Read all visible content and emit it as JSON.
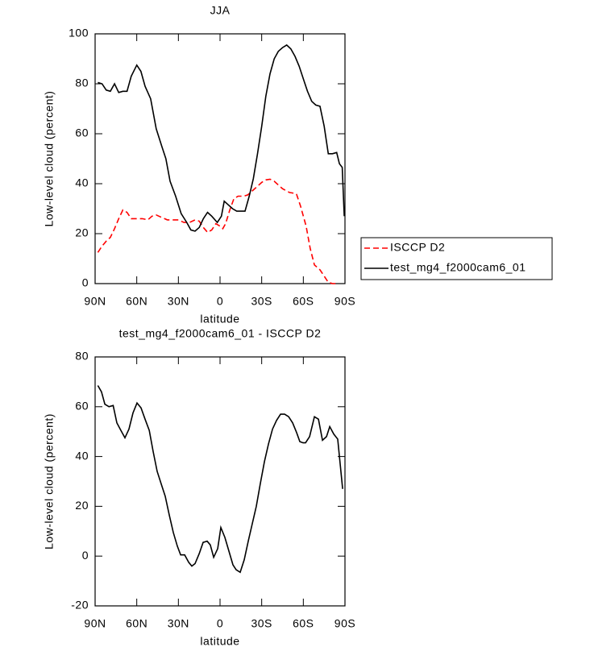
{
  "chart_data": [
    {
      "type": "line",
      "title": "JJA",
      "xlabel": "latitude",
      "ylabel": "Low-level cloud (percent)",
      "xlim": [
        90,
        -90
      ],
      "xticks": [
        {
          "value": 90,
          "label": "90N"
        },
        {
          "value": 60,
          "label": "60N"
        },
        {
          "value": 30,
          "label": "30N"
        },
        0,
        {
          "value": -30,
          "label": "30S"
        },
        {
          "value": -60,
          "label": "60S"
        },
        {
          "value": -90,
          "label": "90S"
        }
      ],
      "ylim": [
        0,
        100
      ],
      "yticks": [
        0,
        20,
        40,
        60,
        80,
        100
      ],
      "legend": "right",
      "series": [
        {
          "name": "ISCCP D2",
          "color": "#ff0000",
          "linestyle": "dashed",
          "x": [
            88,
            85,
            82,
            79,
            76,
            73,
            70,
            67,
            64,
            60,
            56,
            52,
            49,
            46,
            42,
            38,
            34,
            30,
            26,
            22,
            18,
            15,
            12,
            9,
            6,
            3,
            0,
            -2,
            -4,
            -7,
            -10,
            -13,
            -17,
            -20,
            -23,
            -27,
            -30,
            -33,
            -36,
            -39,
            -42,
            -45,
            -50,
            -55,
            -58,
            -62,
            -65,
            -68,
            -72,
            -75,
            -78,
            -81,
            -84
          ],
          "values": [
            12.5,
            15,
            17,
            18.5,
            22,
            26,
            29.5,
            28.5,
            26,
            26,
            26,
            25.5,
            27,
            27.5,
            26.5,
            25.5,
            25.5,
            25.5,
            24.5,
            24.5,
            25.5,
            25,
            22.5,
            20.5,
            21.5,
            24,
            23,
            22,
            24,
            29.5,
            34,
            35,
            35,
            35.5,
            37,
            39,
            40.5,
            41.5,
            41.8,
            41,
            39.5,
            38,
            36.5,
            36,
            31,
            23,
            14,
            7.5,
            5.5,
            3,
            0.5,
            0,
            0
          ]
        },
        {
          "name": "test_mg4_f2000cam6_01",
          "color": "#000000",
          "linestyle": "solid",
          "x": [
            88,
            85,
            82,
            79,
            76,
            73,
            70,
            67,
            64,
            60,
            57,
            54,
            50,
            46,
            42,
            39,
            36,
            32,
            28,
            24,
            21,
            18,
            15,
            12,
            9,
            6,
            2,
            -1,
            -3,
            -6,
            -9,
            -12,
            -15,
            -18,
            -21,
            -24,
            -27,
            -30,
            -33,
            -36,
            -39,
            -42,
            -45,
            -48,
            -51,
            -54,
            -57,
            -60,
            -63,
            -66,
            -69,
            -72,
            -75,
            -78,
            -81,
            -84,
            -86,
            -88,
            -89.5
          ],
          "values": [
            80.5,
            80,
            77.5,
            77,
            80,
            76.5,
            77,
            77,
            83,
            87.5,
            85,
            79,
            74,
            62,
            55,
            50,
            41,
            35,
            28,
            24.5,
            21.5,
            21,
            22.5,
            26,
            28.5,
            27,
            24.5,
            27,
            33,
            31.5,
            30,
            29,
            29,
            29,
            35,
            42,
            52,
            63,
            75,
            84,
            90,
            93,
            94.5,
            95.5,
            94,
            91,
            87,
            82,
            77,
            73,
            71.5,
            71,
            63,
            52,
            52,
            52.5,
            48,
            46.5,
            27
          ]
        }
      ]
    },
    {
      "type": "line",
      "title": "test_mg4_f2000cam6_01 - ISCCP D2",
      "xlabel": "latitude",
      "ylabel": "Low-level cloud (percent)",
      "xlim": [
        90,
        -90
      ],
      "xticks": [
        {
          "value": 90,
          "label": "90N"
        },
        {
          "value": 60,
          "label": "60N"
        },
        {
          "value": 30,
          "label": "30N"
        },
        0,
        {
          "value": -30,
          "label": "30S"
        },
        {
          "value": -60,
          "label": "60S"
        },
        {
          "value": -90,
          "label": "90S"
        }
      ],
      "ylim": [
        -20,
        80
      ],
      "yticks": [
        -20,
        0,
        20,
        40,
        60,
        80
      ],
      "series": [
        {
          "color": "#000000",
          "linestyle": "solid",
          "x": [
            88,
            85.4,
            83,
            80,
            77,
            74.3,
            71.4,
            68.5,
            65.6,
            62.7,
            59.8,
            56.9,
            54,
            51,
            48.2,
            45.3,
            42.4,
            39.5,
            36.6,
            33.7,
            30.8,
            28.4,
            25.5,
            22.6,
            20.3,
            18,
            15,
            12.2,
            9.3,
            7,
            4.6,
            1.7,
            -0.6,
            -3.5,
            -6.4,
            -9.3,
            -11.6,
            -14.5,
            -17.4,
            -20.3,
            -23.2,
            -26.1,
            -29,
            -32,
            -34.9,
            -37.8,
            -40.7,
            -43.6,
            -46.5,
            -49.4,
            -52.3,
            -55.2,
            -57.5,
            -59.8,
            -61.6,
            -64.5,
            -68,
            -70.9,
            -73.8,
            -76.7,
            -79,
            -81.9,
            -84.8,
            -88.3
          ],
          "values": [
            68.5,
            66,
            61,
            60,
            60.5,
            53.5,
            50.5,
            47.5,
            51,
            57.5,
            61.5,
            59.5,
            55,
            50.5,
            42,
            34,
            29,
            24,
            16.5,
            9.5,
            4,
            0.5,
            0.5,
            -2.5,
            -4,
            -3,
            1,
            5.5,
            6,
            4.5,
            -0.5,
            3,
            11.5,
            7.5,
            2,
            -3.5,
            -5.5,
            -6.5,
            -1.5,
            6,
            13,
            20,
            29,
            38,
            45,
            51,
            54.5,
            57,
            57,
            56,
            53.5,
            49.5,
            46,
            45.5,
            45.5,
            48,
            56,
            55,
            46.5,
            48,
            52,
            49,
            47,
            27
          ]
        }
      ]
    }
  ]
}
